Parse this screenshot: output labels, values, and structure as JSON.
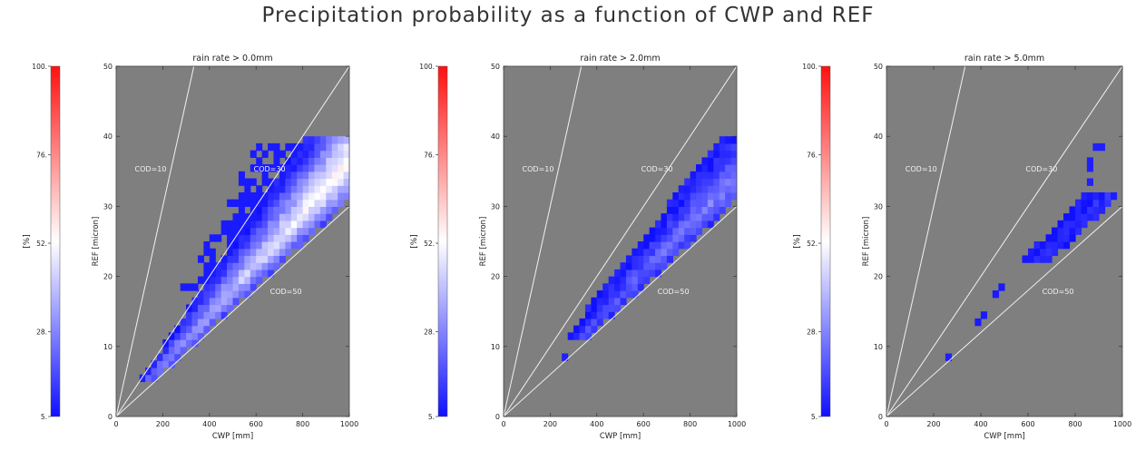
{
  "title": "Precipitation probability as a function of CWP and REF",
  "colors": {
    "background": "#7f7f7f",
    "low": "#1010ff",
    "mid": "#ffffff",
    "high": "#ff1010",
    "lines": "#f2f2f2",
    "text": "#222222"
  },
  "chart_data": [
    {
      "type": "heatmap",
      "title": "rain rate >   0.0mm",
      "xlabel": "CWP [mm]",
      "ylabel": "REF [micron]",
      "xlim": [
        0,
        1000
      ],
      "ylim": [
        0,
        50
      ],
      "x_ticks": [
        "0",
        "200",
        "400",
        "600",
        "800",
        "1000"
      ],
      "y_ticks": [
        "0",
        "10",
        "20",
        "30",
        "40",
        "50"
      ],
      "colorbar": {
        "label": "[%]",
        "range": [
          5,
          100
        ],
        "ticks": [
          "5.",
          "28.",
          "52.",
          "76.",
          "100."
        ]
      },
      "cod_lines": [
        {
          "label": "COD=10",
          "cod": 10
        },
        {
          "label": "COD=30",
          "cod": 30
        },
        {
          "label": "COD=50",
          "cod": 50
        }
      ],
      "bins": {
        "dcwp": 25,
        "dref": 1
      },
      "regions": [
        {
          "cod_min": 30,
          "cod_max": 48.5,
          "ref_min": 5,
          "ref_max": 40,
          "vmin": 8,
          "vmax": 62,
          "shape": "band"
        },
        {
          "cod_min": 23,
          "cod_max": 31,
          "ref_min": 17,
          "ref_max": 39,
          "v": 7,
          "fill": 0.55,
          "shape": "flat"
        }
      ],
      "points": []
    },
    {
      "type": "heatmap",
      "title": "rain rate >   2.0mm",
      "xlabel": "CWP [mm]",
      "ylabel": "REF [micron]",
      "xlim": [
        0,
        1000
      ],
      "ylim": [
        0,
        50
      ],
      "x_ticks": [
        "0",
        "200",
        "400",
        "600",
        "800",
        "1000"
      ],
      "y_ticks": [
        "0",
        "10",
        "20",
        "30",
        "40",
        "50"
      ],
      "colorbar": {
        "label": "[%]",
        "range": [
          5,
          100
        ],
        "ticks": [
          "5.",
          "28.",
          "52.",
          "76.",
          "100."
        ]
      },
      "cod_lines": [
        {
          "label": "COD=10",
          "cod": 10
        },
        {
          "label": "COD=30",
          "cod": 30
        },
        {
          "label": "COD=50",
          "cod": 50
        }
      ],
      "bins": {
        "dcwp": 25,
        "dref": 1
      },
      "regions": [
        {
          "cod_min": 35,
          "cod_max": 48.5,
          "ref_min": 11,
          "ref_max": 40,
          "vmin": 7,
          "vmax": 32,
          "shape": "band"
        }
      ],
      "points": [
        {
          "x": 262,
          "y": 8.5,
          "v": 8
        }
      ]
    },
    {
      "type": "heatmap",
      "title": "rain rate >   5.0mm",
      "xlabel": "CWP [mm]",
      "ylabel": "REF [micron]",
      "xlim": [
        0,
        1000
      ],
      "ylim": [
        0,
        50
      ],
      "x_ticks": [
        "0",
        "200",
        "400",
        "600",
        "800",
        "1000"
      ],
      "y_ticks": [
        "0",
        "10",
        "20",
        "30",
        "40",
        "50"
      ],
      "colorbar": {
        "label": "[%]",
        "range": [
          5,
          100
        ],
        "ticks": [
          "5.",
          "28.",
          "52.",
          "76.",
          "100."
        ]
      },
      "cod_lines": [
        {
          "label": "COD=10",
          "cod": 10
        },
        {
          "label": "COD=30",
          "cod": 30
        },
        {
          "label": "COD=50",
          "cod": 50
        }
      ],
      "bins": {
        "dcwp": 25,
        "dref": 1
      },
      "regions": [
        {
          "cod_min": 39,
          "cod_max": 47,
          "ref_min": 22,
          "ref_max": 32,
          "vmin": 6,
          "vmax": 12,
          "shape": "band"
        }
      ],
      "points": [
        {
          "x": 262,
          "y": 8.5,
          "v": 8
        },
        {
          "x": 387,
          "y": 13.5,
          "v": 7
        },
        {
          "x": 412,
          "y": 14.5,
          "v": 7
        },
        {
          "x": 462,
          "y": 17.5,
          "v": 7
        },
        {
          "x": 487,
          "y": 18.5,
          "v": 7
        },
        {
          "x": 862,
          "y": 33.5,
          "v": 8
        },
        {
          "x": 862,
          "y": 35.5,
          "v": 8
        },
        {
          "x": 862,
          "y": 36.5,
          "v": 8
        },
        {
          "x": 887,
          "y": 38.5,
          "v": 8
        },
        {
          "x": 912,
          "y": 38.5,
          "v": 8
        }
      ]
    }
  ]
}
